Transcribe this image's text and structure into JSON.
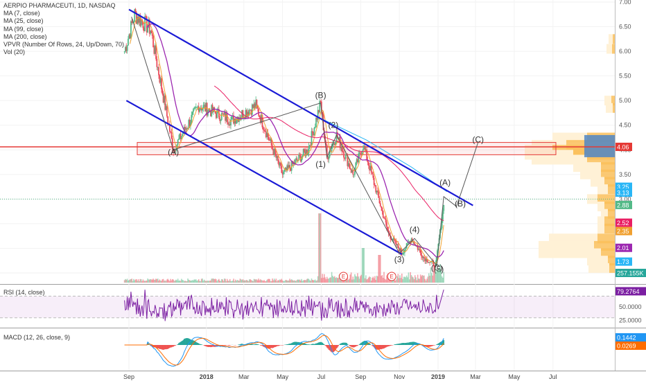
{
  "legend": {
    "title": "AERPIO PHARMACEUTI, 1D, NASDAQ",
    "ma7": "MA (7, close)",
    "ma25": "MA (25, close)",
    "ma99": "MA (99, close)",
    "ma200": "MA (200, close)",
    "vpvr": "VPVR (Number Of Rows, 24, Up/Down, 70)",
    "vol": "Vol (20)"
  },
  "rsi_label": "RSI (14, close)",
  "macd_label": "MACD (12, 26, close, 9)",
  "colors": {
    "up": "#53b987",
    "down": "#eb4d5c",
    "channel": "#1a1ad6",
    "ma7": "#f0a030",
    "ma25": "#9c27b0",
    "ma99": "#e91e63",
    "ma200": "#29b6f6",
    "resistance": "#e53935",
    "rsi": "#7b1fa2",
    "macd": "#2196f3",
    "signal": "#ff6d00"
  },
  "chart_data": {
    "type": "candlestick",
    "symbol": "AERPIO PHARMACEUTI",
    "interval": "1D",
    "exchange": "NASDAQ",
    "x_ticks": [
      "Sep",
      "2018",
      "Mar",
      "May",
      "Jul",
      "Sep",
      "Nov",
      "2019",
      "Mar",
      "May",
      "Jul"
    ],
    "price_axis_ticks": [
      "7.00",
      "6.50",
      "6.00",
      "5.50",
      "5.00",
      "4.50",
      "4.00",
      "3.50",
      "3.00",
      "2.50",
      "2.00",
      "1.50"
    ],
    "ylim": [
      1.5,
      7.0
    ],
    "price_path_key_points": [
      {
        "date": "2017-08-25",
        "close": 6.0
      },
      {
        "date": "2017-09-10",
        "close": 6.75
      },
      {
        "date": "2017-10-05",
        "close": 6.45
      },
      {
        "date": "2017-11-10",
        "close": 4.0
      },
      {
        "date": "2017-12-20",
        "close": 4.9
      },
      {
        "date": "2018-02-10",
        "close": 4.6
      },
      {
        "date": "2018-03-20",
        "close": 4.9
      },
      {
        "date": "2018-05-01",
        "close": 3.5
      },
      {
        "date": "2018-06-10",
        "close": 4.0
      },
      {
        "date": "2018-06-30",
        "close": 4.95
      },
      {
        "date": "2018-07-10",
        "close": 3.85
      },
      {
        "date": "2018-07-25",
        "close": 4.3
      },
      {
        "date": "2018-08-20",
        "close": 3.5
      },
      {
        "date": "2018-09-05",
        "close": 4.1
      },
      {
        "date": "2018-10-15",
        "close": 2.3
      },
      {
        "date": "2018-11-05",
        "close": 1.9
      },
      {
        "date": "2018-11-20",
        "close": 2.2
      },
      {
        "date": "2018-12-10",
        "close": 1.8
      },
      {
        "date": "2018-12-28",
        "close": 1.65
      },
      {
        "date": "2019-01-10",
        "close": 2.88
      }
    ],
    "annotations": [
      {
        "text": "(A)",
        "date": "2017-11-10",
        "price": 3.9
      },
      {
        "text": "(B)",
        "date": "2018-06-30",
        "price": 5.05
      },
      {
        "text": "(1)",
        "date": "2018-06-30",
        "price": 3.65
      },
      {
        "text": "(2)",
        "date": "2018-07-20",
        "price": 4.45
      },
      {
        "text": "(3)",
        "date": "2018-11-01",
        "price": 1.72
      },
      {
        "text": "(4)",
        "date": "2018-11-25",
        "price": 2.32
      },
      {
        "text": "(C)",
        "date": "2018-12-30",
        "price": 1.55
      },
      {
        "text": "(5)",
        "date": "2019-01-02",
        "price": 1.52
      },
      {
        "text": "(A)",
        "date": "2019-01-12",
        "price": 3.28
      },
      {
        "text": "(B)",
        "date": "2019-02-05",
        "price": 2.85
      },
      {
        "text": "(C)",
        "date": "2019-03-05",
        "price": 4.15
      }
    ],
    "trend_lines": [
      {
        "name": "channel-upper",
        "from": {
          "date": "2017-09-01",
          "price": 6.85
        },
        "to": {
          "date": "2019-02-25",
          "price": 2.87
        }
      },
      {
        "name": "channel-lower",
        "from": {
          "date": "2017-08-28",
          "price": 5.0
        },
        "to": {
          "date": "2018-11-05",
          "price": 1.88
        }
      }
    ],
    "horizontal_lines": [
      {
        "name": "resistance",
        "price": 4.06
      },
      {
        "name": "last-price-dotted",
        "price": 3.0
      }
    ],
    "resistance_zone": [
      3.9,
      4.15
    ],
    "price_axis_badges": [
      {
        "label": "4.06",
        "color": "#e53935"
      },
      {
        "label": "3.25",
        "color": "#29b6f6"
      },
      {
        "label": "3.13",
        "color": "#29b6f6"
      },
      {
        "label": "2.88",
        "color": "#53b987"
      },
      {
        "label": "2.52",
        "color": "#e91e63"
      },
      {
        "label": "2.35",
        "color": "#f0a030"
      },
      {
        "label": "2.01",
        "color": "#9c27b0"
      },
      {
        "label": "1.73",
        "color": "#29b6f6"
      },
      {
        "label": "257.155K",
        "color": "#26a69a"
      }
    ],
    "volume_last": "257.155K",
    "volume_markers": [
      "E",
      "E"
    ],
    "rsi": {
      "ticks": [
        "75.0000",
        "50.0000",
        "25.0000"
      ],
      "last": "79.2764",
      "upper": 70,
      "lower": 30
    },
    "macd": {
      "macd_last": "0.1442",
      "signal_last": "0.0269"
    }
  }
}
